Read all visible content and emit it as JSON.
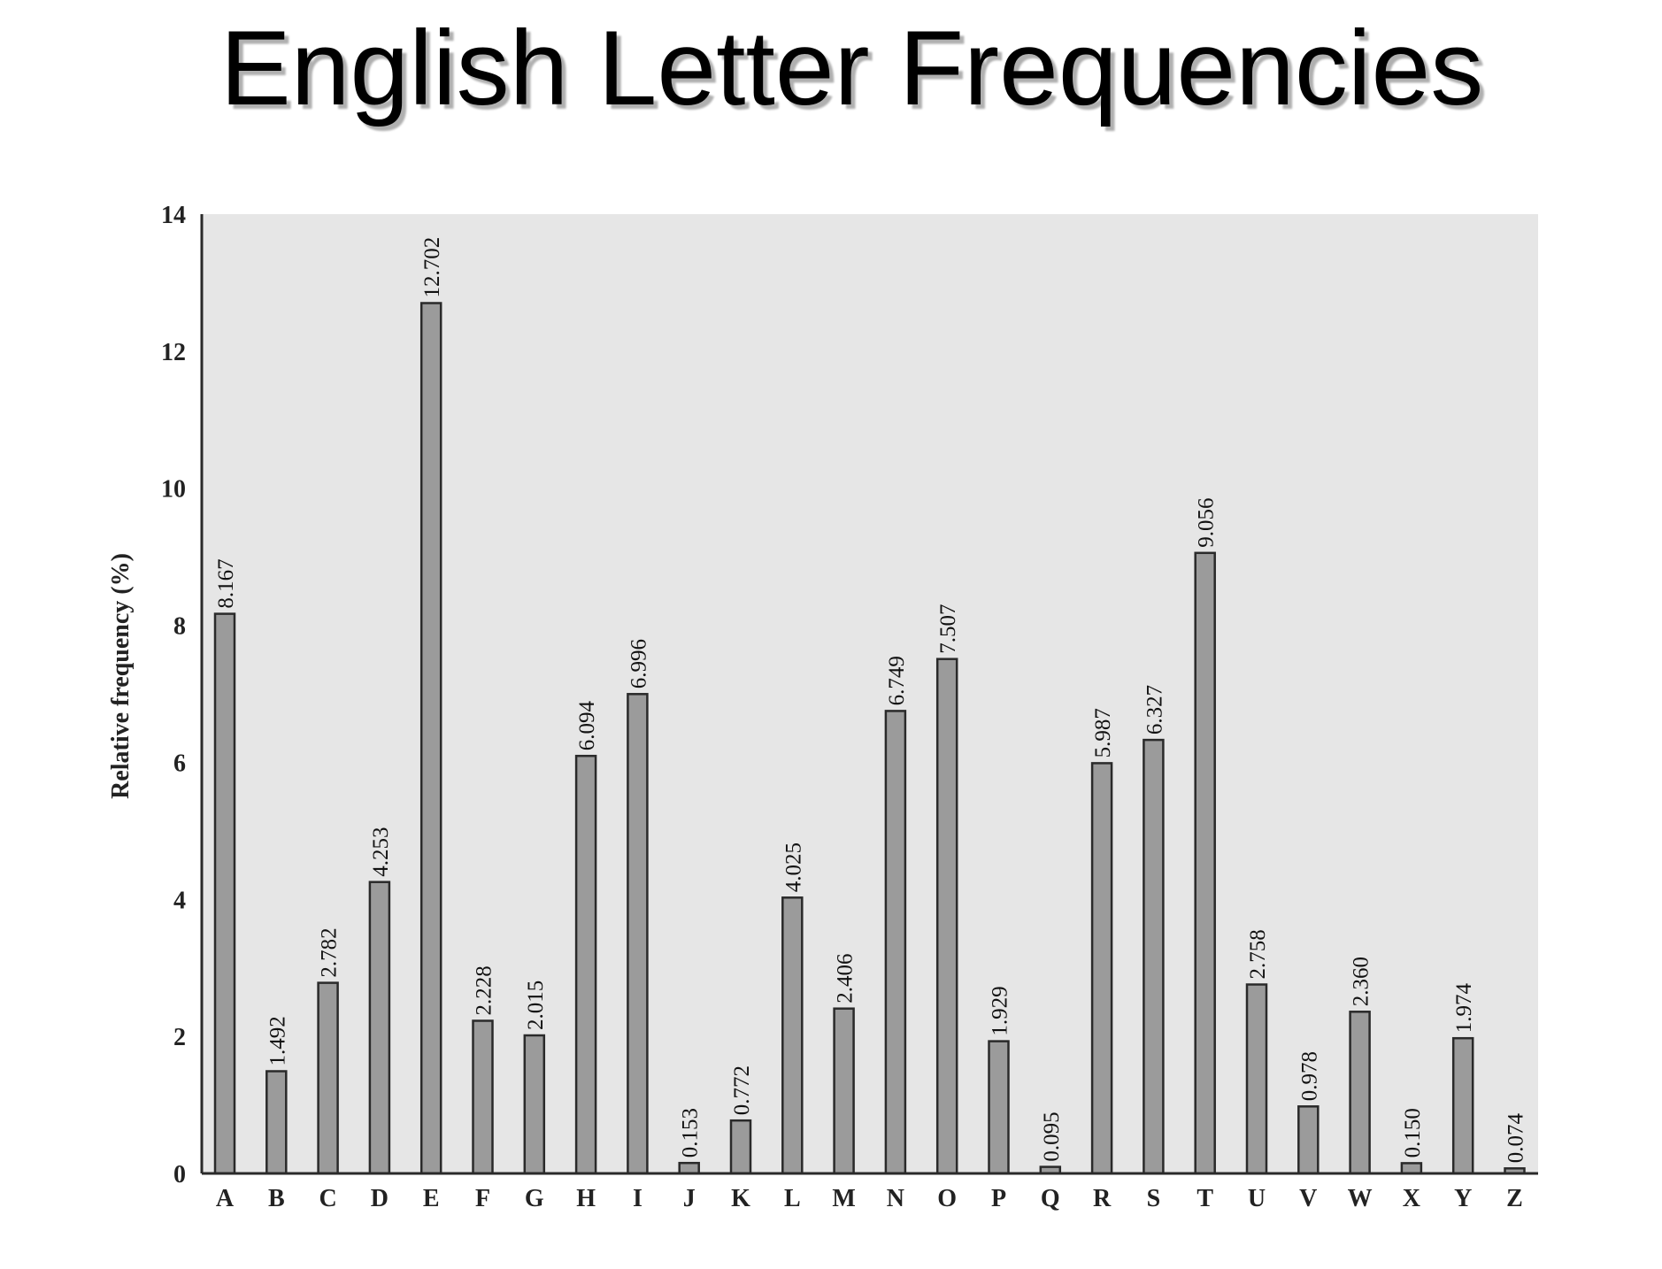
{
  "page": {
    "title": "English Letter Frequencies"
  },
  "chart_data": {
    "type": "bar",
    "title": "English Letter Frequencies",
    "xlabel": "",
    "ylabel": "Relative frequency (%)",
    "ylim": [
      0,
      14
    ],
    "yticks": [
      0,
      2,
      4,
      6,
      8,
      10,
      12,
      14
    ],
    "grid": false,
    "legend": "none",
    "categories": [
      "A",
      "B",
      "C",
      "D",
      "E",
      "F",
      "G",
      "H",
      "I",
      "J",
      "K",
      "L",
      "M",
      "N",
      "O",
      "P",
      "Q",
      "R",
      "S",
      "T",
      "U",
      "V",
      "W",
      "X",
      "Y",
      "Z"
    ],
    "values": [
      8.167,
      1.492,
      2.782,
      4.253,
      12.702,
      2.228,
      2.015,
      6.094,
      6.996,
      0.153,
      0.772,
      4.025,
      2.406,
      6.749,
      7.507,
      1.929,
      0.095,
      5.987,
      6.327,
      9.056,
      2.758,
      0.978,
      2.36,
      0.15,
      1.974,
      0.074
    ],
    "value_labels": [
      "8.167",
      "1.492",
      "2.782",
      "4.253",
      "12.702",
      "2.228",
      "2.015",
      "6.094",
      "6.996",
      "0.153",
      "0.772",
      "4.025",
      "2.406",
      "6.749",
      "7.507",
      "1.929",
      "0.095",
      "5.987",
      "6.327",
      "9.056",
      "2.758",
      "0.978",
      "2.360",
      "0.150",
      "1.974",
      "0.074"
    ],
    "colors": {
      "bar_fill": "#9b9b9b",
      "bar_stroke": "#2a2a2a",
      "plot_background": "#e6e6e6",
      "axis": "#2a2a2a"
    }
  }
}
